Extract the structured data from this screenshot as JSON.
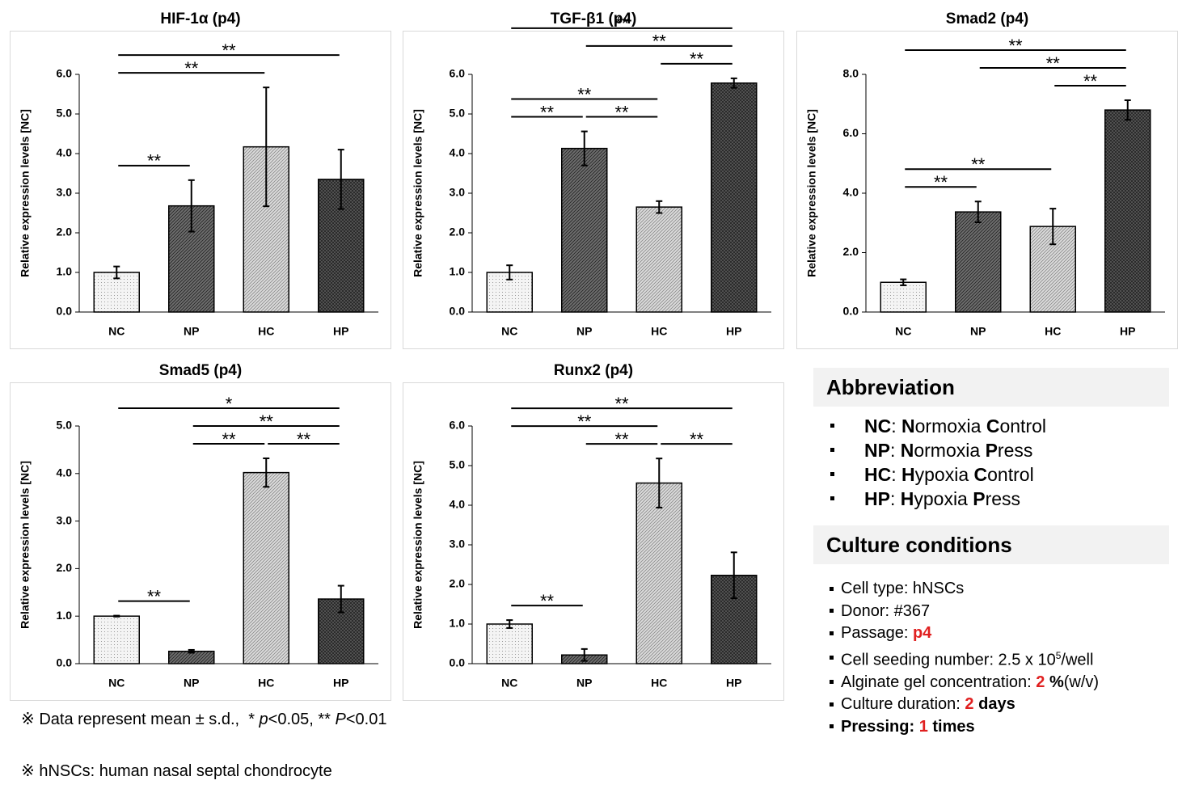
{
  "chart_data": [
    {
      "type": "bar",
      "title": "HIF-1α (p4)",
      "y_label": "Relative expression levels [NC]",
      "categories": [
        "NC",
        "NP",
        "HC",
        "HP"
      ],
      "values": [
        1.0,
        2.68,
        4.17,
        3.35
      ],
      "errors": [
        0.15,
        0.65,
        1.5,
        0.75
      ],
      "colors": [
        "#f4f4f4",
        "#6e6e6e",
        "#dcdcdc",
        "#5a5a5a"
      ],
      "ylim": [
        0,
        6
      ],
      "yticks": [
        {
          "value": 0,
          "label": "0.0"
        },
        {
          "value": 1,
          "label": "1.0"
        },
        {
          "value": 2,
          "label": "2.0"
        },
        {
          "value": 3,
          "label": "3.0"
        },
        {
          "value": 4,
          "label": "4.0"
        },
        {
          "value": 5,
          "label": "5.0"
        },
        {
          "value": 6,
          "label": "6.0"
        }
      ],
      "brackets": [
        {
          "between": [
            0,
            1
          ],
          "label": "**"
        },
        {
          "between": [
            0,
            2
          ],
          "label": "**"
        },
        {
          "between": [
            0,
            3
          ],
          "label": "**"
        }
      ]
    },
    {
      "type": "bar",
      "title": "TGF-β1 (p4)",
      "y_label": "Relative expression levels [NC]",
      "categories": [
        "NC",
        "NP",
        "HC",
        "HP"
      ],
      "values": [
        1.0,
        4.13,
        2.65,
        5.78
      ],
      "errors": [
        0.18,
        0.43,
        0.15,
        0.12
      ],
      "colors": [
        "#f4f4f4",
        "#6e6e6e",
        "#dcdcdc",
        "#5a5a5a"
      ],
      "ylim": [
        0,
        6
      ],
      "yticks": [
        {
          "value": 0,
          "label": "0.0"
        },
        {
          "value": 1,
          "label": "1.0"
        },
        {
          "value": 2,
          "label": "2.0"
        },
        {
          "value": 3,
          "label": "3.0"
        },
        {
          "value": 4,
          "label": "4.0"
        },
        {
          "value": 5,
          "label": "5.0"
        },
        {
          "value": 6,
          "label": "6.0"
        }
      ],
      "brackets": [
        {
          "between": [
            0,
            1
          ],
          "label": "**"
        },
        {
          "between": [
            1,
            2
          ],
          "label": "**"
        },
        {
          "between": [
            0,
            2
          ],
          "label": "**"
        },
        {
          "between": [
            2,
            3
          ],
          "label": "**"
        },
        {
          "between": [
            1,
            3
          ],
          "label": "**"
        },
        {
          "between": [
            0,
            3
          ],
          "label": "**"
        }
      ]
    },
    {
      "type": "bar",
      "title": "Smad2 (p4)",
      "y_label": "Relative expression levels [NC]",
      "categories": [
        "NC",
        "NP",
        "HC",
        "HP"
      ],
      "values": [
        1.0,
        3.37,
        2.88,
        6.8
      ],
      "errors": [
        0.1,
        0.35,
        0.6,
        0.33
      ],
      "colors": [
        "#f4f4f4",
        "#6e6e6e",
        "#dcdcdc",
        "#5a5a5a"
      ],
      "ylim": [
        0,
        8
      ],
      "yticks": [
        {
          "value": 0,
          "label": "0.0"
        },
        {
          "value": 2,
          "label": "2.0"
        },
        {
          "value": 4,
          "label": "4.0"
        },
        {
          "value": 6,
          "label": "6.0"
        },
        {
          "value": 8,
          "label": "8.0"
        }
      ],
      "brackets": [
        {
          "between": [
            0,
            1
          ],
          "label": "**"
        },
        {
          "between": [
            0,
            2
          ],
          "label": "**"
        },
        {
          "between": [
            2,
            3
          ],
          "label": "**"
        },
        {
          "between": [
            1,
            3
          ],
          "label": "**"
        },
        {
          "between": [
            0,
            3
          ],
          "label": "**"
        }
      ]
    },
    {
      "type": "bar",
      "title": "Smad5 (p4)",
      "y_label": "Relative expression levels [NC]",
      "categories": [
        "NC",
        "NP",
        "HC",
        "HP"
      ],
      "values": [
        1.0,
        0.26,
        4.02,
        1.36
      ],
      "errors": [
        0.01,
        0.03,
        0.3,
        0.28
      ],
      "colors": [
        "#f4f4f4",
        "#6e6e6e",
        "#dcdcdc",
        "#5a5a5a"
      ],
      "ylim": [
        0,
        5
      ],
      "yticks": [
        {
          "value": 0,
          "label": "0.0"
        },
        {
          "value": 1,
          "label": "1.0"
        },
        {
          "value": 2,
          "label": "2.0"
        },
        {
          "value": 3,
          "label": "3.0"
        },
        {
          "value": 4,
          "label": "4.0"
        },
        {
          "value": 5,
          "label": "5.0"
        }
      ],
      "brackets": [
        {
          "between": [
            0,
            1
          ],
          "label": "**"
        },
        {
          "between": [
            1,
            2
          ],
          "label": "**"
        },
        {
          "between": [
            2,
            3
          ],
          "label": "**"
        },
        {
          "between": [
            1,
            3
          ],
          "label": "**"
        },
        {
          "between": [
            0,
            3
          ],
          "label": "*"
        }
      ]
    },
    {
      "type": "bar",
      "title": "Runx2 (p4)",
      "y_label": "Relative expression levels [NC]",
      "categories": [
        "NC",
        "NP",
        "HC",
        "HP"
      ],
      "values": [
        1.0,
        0.22,
        4.56,
        2.23
      ],
      "errors": [
        0.1,
        0.15,
        0.62,
        0.58
      ],
      "colors": [
        "#f4f4f4",
        "#6e6e6e",
        "#dcdcdc",
        "#5a5a5a"
      ],
      "ylim": [
        0,
        6
      ],
      "yticks": [
        {
          "value": 0,
          "label": "0.0"
        },
        {
          "value": 1,
          "label": "1.0"
        },
        {
          "value": 2,
          "label": "2.0"
        },
        {
          "value": 3,
          "label": "3.0"
        },
        {
          "value": 4,
          "label": "4.0"
        },
        {
          "value": 5,
          "label": "5.0"
        },
        {
          "value": 6,
          "label": "6.0"
        }
      ],
      "brackets": [
        {
          "between": [
            0,
            1
          ],
          "label": "**"
        },
        {
          "between": [
            1,
            2
          ],
          "label": "**"
        },
        {
          "between": [
            2,
            3
          ],
          "label": "**"
        },
        {
          "between": [
            0,
            2
          ],
          "label": "**"
        },
        {
          "between": [
            0,
            3
          ],
          "label": "**"
        }
      ]
    }
  ],
  "abbreviation": {
    "title": "Abbreviation",
    "items": [
      {
        "segments": [
          {
            "text": "NC",
            "bold": true
          },
          {
            "text": ": "
          },
          {
            "text": "N",
            "bold": true
          },
          {
            "text": "ormoxia "
          },
          {
            "text": "C",
            "bold": true
          },
          {
            "text": "ontrol"
          }
        ]
      },
      {
        "segments": [
          {
            "text": "NP",
            "bold": true
          },
          {
            "text": ": "
          },
          {
            "text": "N",
            "bold": true
          },
          {
            "text": "ormoxia "
          },
          {
            "text": "P",
            "bold": true
          },
          {
            "text": "ress"
          }
        ]
      },
      {
        "segments": [
          {
            "text": "HC",
            "bold": true
          },
          {
            "text": ": "
          },
          {
            "text": "H",
            "bold": true
          },
          {
            "text": "ypoxia "
          },
          {
            "text": "C",
            "bold": true
          },
          {
            "text": "ontrol"
          }
        ]
      },
      {
        "segments": [
          {
            "text": "HP",
            "bold": true
          },
          {
            "text": ": "
          },
          {
            "text": "H",
            "bold": true
          },
          {
            "text": "ypoxia "
          },
          {
            "text": "P",
            "bold": true
          },
          {
            "text": "ress"
          }
        ]
      }
    ]
  },
  "culture": {
    "title": "Culture conditions",
    "items": [
      {
        "segments": [
          {
            "text": "Cell type: hNSCs"
          }
        ]
      },
      {
        "segments": [
          {
            "text": "Donor: #367"
          }
        ]
      },
      {
        "segments": [
          {
            "text": "Passage: "
          },
          {
            "text": "p4",
            "bold": true,
            "color": "#e02020"
          }
        ]
      },
      {
        "segments": [
          {
            "text": "Cell seeding number: 2.5 x 10"
          },
          {
            "text": "5",
            "sup": true
          },
          {
            "text": "/well"
          }
        ]
      },
      {
        "segments": [
          {
            "text": "Alginate gel concentration: "
          },
          {
            "text": "2",
            "bold": true,
            "color": "#e02020"
          },
          {
            "text": " %",
            "bold": true
          },
          {
            "text": "(w/v)"
          }
        ]
      },
      {
        "segments": [
          {
            "text": "Culture duration: "
          },
          {
            "text": "2",
            "bold": true,
            "color": "#e02020"
          },
          {
            "text": " days",
            "bold": true
          }
        ]
      },
      {
        "segments": [
          {
            "text": "Pressing: ",
            "bold": true
          },
          {
            "text": "1",
            "bold": true,
            "color": "#e02020"
          },
          {
            "text": " times",
            "bold": true
          }
        ]
      }
    ]
  },
  "notes": [
    {
      "segments": [
        {
          "text": "※ Data represent mean ± s.d.,  * "
        },
        {
          "text": "p",
          "italic": true
        },
        {
          "text": "<0.05, ** "
        },
        {
          "text": "P",
          "italic": true
        },
        {
          "text": "<0.01"
        }
      ]
    },
    {
      "segments": [
        {
          "text": "※ hNSCs: human nasal septal chondrocyte"
        }
      ]
    }
  ]
}
